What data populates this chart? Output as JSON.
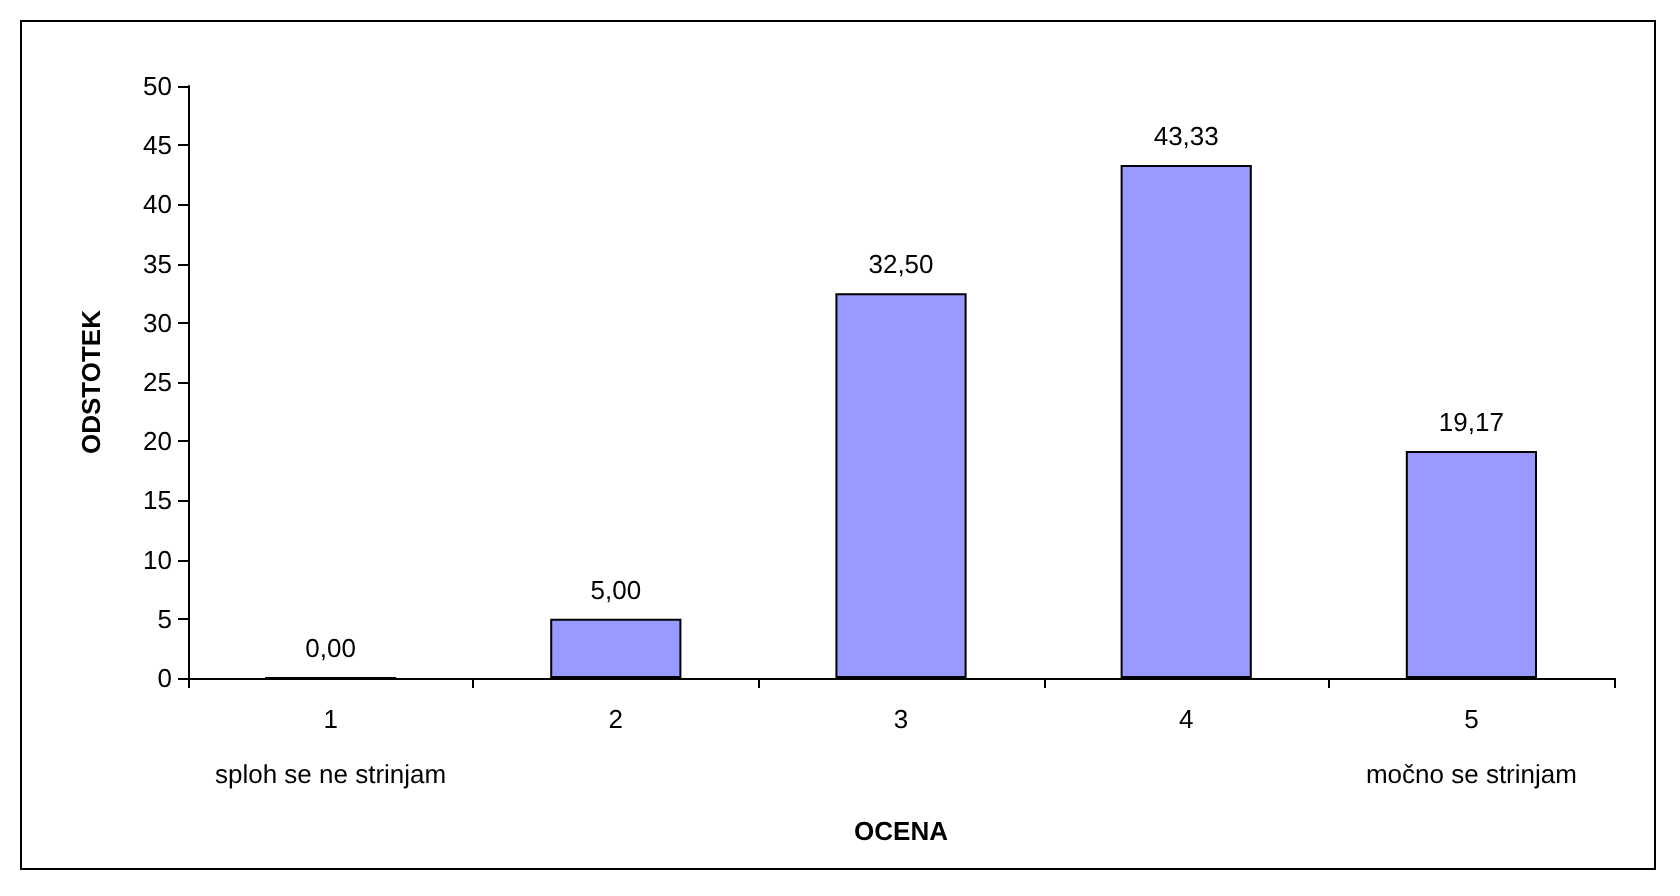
{
  "chart_data": {
    "type": "bar",
    "xlabel": "OCENA",
    "ylabel": "ODSTOTEK",
    "categories": [
      "1",
      "2",
      "3",
      "4",
      "5"
    ],
    "values": [
      0,
      5,
      32.5,
      43.33,
      19.17
    ],
    "value_labels": [
      "0,00",
      "5,00",
      "32,50",
      "43,33",
      "19,17"
    ],
    "color": "#9999ff",
    "ylim": [
      0,
      50
    ],
    "yticks": [
      0,
      5,
      10,
      15,
      20,
      25,
      30,
      35,
      40,
      45,
      50
    ],
    "grid": false,
    "annotations": [
      "sploh se ne strinjam",
      "močno se strinjam"
    ]
  }
}
